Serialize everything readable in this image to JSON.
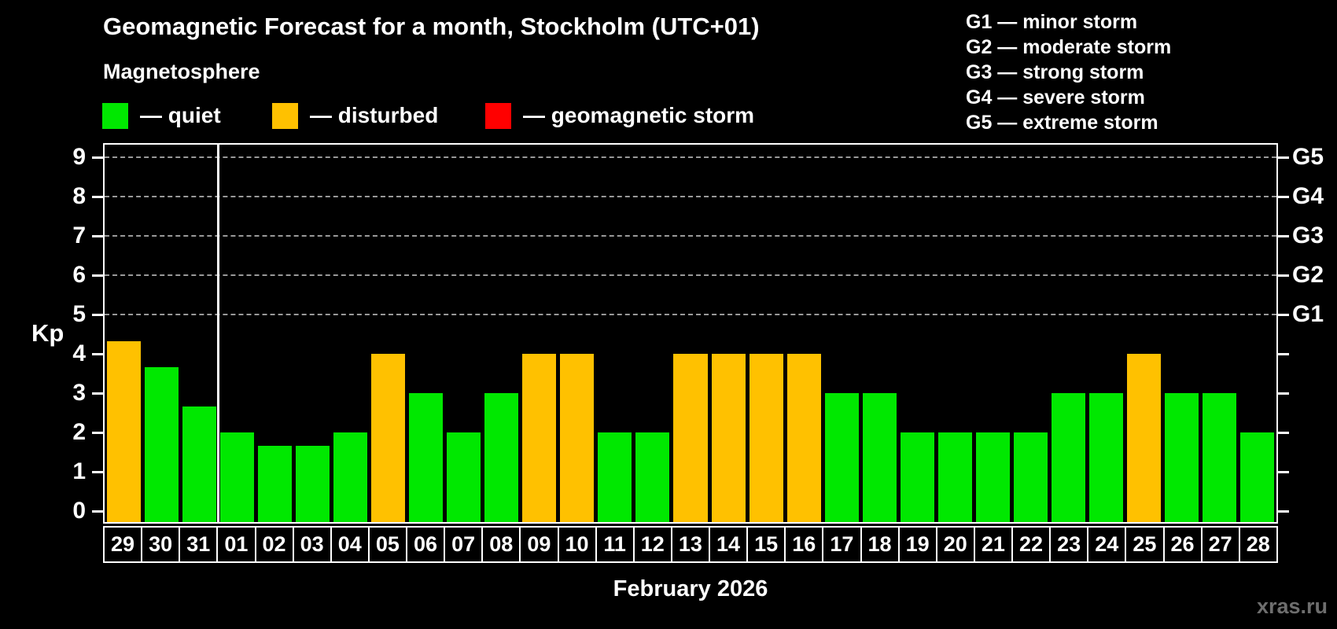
{
  "title": "Geomagnetic Forecast for a month, Stockholm (UTC+01)",
  "subtitle": "Magnetosphere",
  "legend": {
    "items": [
      {
        "key": "quiet",
        "label": "— quiet",
        "color": "#00e800"
      },
      {
        "key": "disturbed",
        "label": "— disturbed",
        "color": "#ffc100"
      },
      {
        "key": "storm",
        "label": "— geomagnetic storm",
        "color": "#ff0000"
      }
    ]
  },
  "g_scale_legend": [
    "G1 — minor storm",
    "G2 — moderate storm",
    "G3 — strong storm",
    "G4 — severe storm",
    "G5 — extreme storm"
  ],
  "axis": {
    "kp_label": "Kp",
    "kp_ticks": [
      "0",
      "1",
      "2",
      "3",
      "4",
      "5",
      "6",
      "7",
      "8",
      "9"
    ],
    "g_labels": [
      {
        "kp": 5,
        "text": "G1"
      },
      {
        "kp": 6,
        "text": "G2"
      },
      {
        "kp": 7,
        "text": "G3"
      },
      {
        "kp": 8,
        "text": "G4"
      },
      {
        "kp": 9,
        "text": "G5"
      }
    ]
  },
  "footer": {
    "month_label": "February 2026",
    "watermark": "xras.ru"
  },
  "chart_data": {
    "type": "bar",
    "title": "Geomagnetic Forecast for a month, Stockholm (UTC+01)",
    "xlabel": "February 2026",
    "ylabel": "Kp",
    "ylim": [
      0,
      9
    ],
    "grid": "dashed horizontal at Kp 5-9 only",
    "grid_dashed_at": [
      5,
      6,
      7,
      8,
      9
    ],
    "legend_position": "top",
    "month_separator_after_index": 2,
    "categories": [
      "29",
      "30",
      "31",
      "01",
      "02",
      "03",
      "04",
      "05",
      "06",
      "07",
      "08",
      "09",
      "10",
      "11",
      "12",
      "13",
      "14",
      "15",
      "16",
      "17",
      "18",
      "19",
      "20",
      "21",
      "22",
      "23",
      "24",
      "25",
      "26",
      "27",
      "28"
    ],
    "values": [
      4.33,
      3.67,
      2.67,
      2,
      1.67,
      1.67,
      2,
      4,
      3,
      2,
      3,
      4,
      4,
      2,
      2,
      4,
      4,
      4,
      4,
      3,
      3,
      2,
      2,
      2,
      2,
      3,
      3,
      4,
      3,
      3,
      2
    ],
    "statuses": [
      "disturbed",
      "quiet",
      "quiet",
      "quiet",
      "quiet",
      "quiet",
      "quiet",
      "disturbed",
      "quiet",
      "quiet",
      "quiet",
      "disturbed",
      "disturbed",
      "quiet",
      "quiet",
      "disturbed",
      "disturbed",
      "disturbed",
      "disturbed",
      "quiet",
      "quiet",
      "quiet",
      "quiet",
      "quiet",
      "quiet",
      "quiet",
      "quiet",
      "disturbed",
      "quiet",
      "quiet",
      "quiet"
    ],
    "colors": {
      "quiet": "#00e800",
      "disturbed": "#ffc100",
      "storm": "#ff0000"
    }
  }
}
